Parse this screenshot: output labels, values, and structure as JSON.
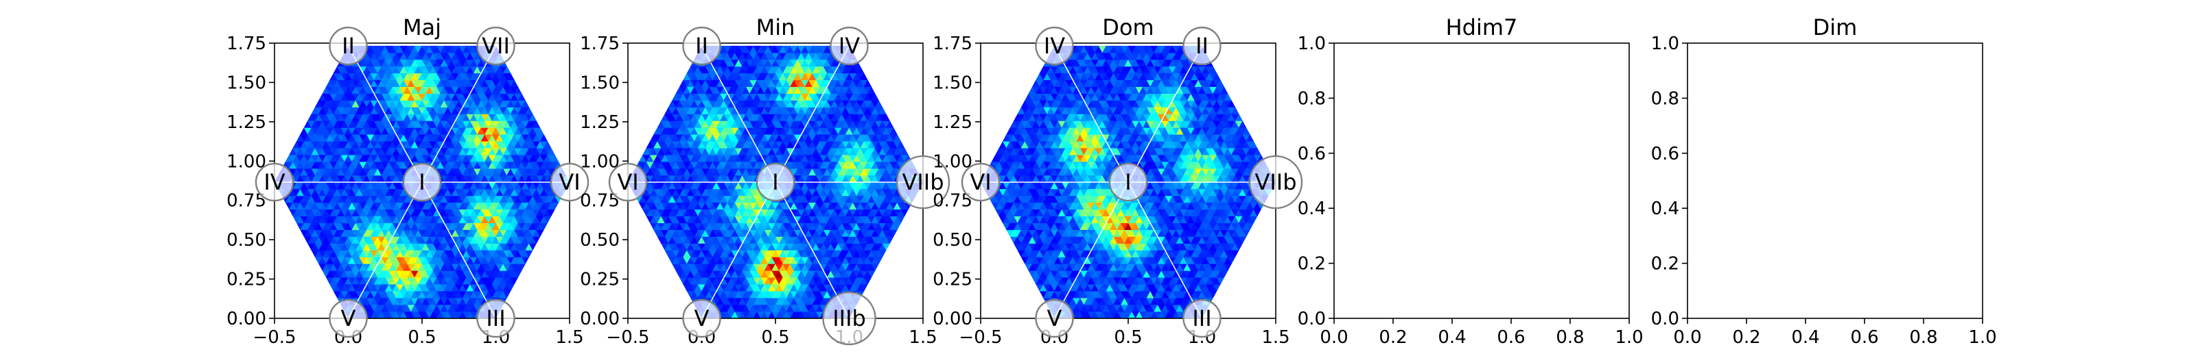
{
  "colors": {
    "axes_edge": "#000000",
    "grid_line": "#ffffff",
    "marker_fill": "#ffffff",
    "marker_edge": "#808080",
    "colormap": "jet"
  },
  "chart_data": [
    {
      "type": "heatmap",
      "title": "Maj",
      "xlim": [
        -0.5,
        1.5
      ],
      "ylim": [
        0,
        1.75
      ],
      "xticks": [
        "−0.5",
        "0.0",
        "0.5",
        "1.0",
        "1.5"
      ],
      "yticks": [
        "0.00",
        "0.25",
        "0.50",
        "0.75",
        "1.00",
        "1.25",
        "1.50",
        "1.75"
      ],
      "hexagon": {
        "center": [
          0.5,
          0.866
        ],
        "radius": 1.0
      },
      "vertex_labels": [
        {
          "label": "I",
          "x": 0.5,
          "y": 0.866
        },
        {
          "label": "II",
          "x": 0.0,
          "y": 1.732
        },
        {
          "label": "VII",
          "x": 1.0,
          "y": 1.732
        },
        {
          "label": "IV",
          "x": -0.5,
          "y": 0.866
        },
        {
          "label": "VI",
          "x": 1.5,
          "y": 0.866
        },
        {
          "label": "V",
          "x": 0.0,
          "y": 0.0
        },
        {
          "label": "III",
          "x": 1.0,
          "y": 0.0
        }
      ],
      "hotspots": [
        {
          "x": 0.45,
          "y": 1.45,
          "intensity": 0.55
        },
        {
          "x": 0.95,
          "y": 1.15,
          "intensity": 0.65
        },
        {
          "x": 0.95,
          "y": 0.6,
          "intensity": 0.55
        },
        {
          "x": 0.4,
          "y": 0.3,
          "intensity": 0.6
        },
        {
          "x": 0.2,
          "y": 0.45,
          "intensity": 0.5
        }
      ]
    },
    {
      "type": "heatmap",
      "title": "Min",
      "xlim": [
        -0.5,
        1.5
      ],
      "ylim": [
        0,
        1.75
      ],
      "xticks": [
        "−0.5",
        "0.0",
        "0.5",
        "1.0",
        "1.5"
      ],
      "yticks": [
        "0.00",
        "0.25",
        "0.50",
        "0.75",
        "1.00",
        "1.25",
        "1.50",
        "1.75"
      ],
      "hexagon": {
        "center": [
          0.5,
          0.866
        ],
        "radius": 1.0
      },
      "vertex_labels": [
        {
          "label": "I",
          "x": 0.5,
          "y": 0.866
        },
        {
          "label": "II",
          "x": 0.0,
          "y": 1.732
        },
        {
          "label": "IV",
          "x": 1.0,
          "y": 1.732
        },
        {
          "label": "VI",
          "x": -0.5,
          "y": 0.866
        },
        {
          "label": "VIIb",
          "x": 1.5,
          "y": 0.866
        },
        {
          "label": "V",
          "x": 0.0,
          "y": 0.0
        },
        {
          "label": "IIIb",
          "x": 1.0,
          "y": 0.0
        }
      ],
      "hotspots": [
        {
          "x": 0.7,
          "y": 1.5,
          "intensity": 0.6
        },
        {
          "x": 0.5,
          "y": 0.3,
          "intensity": 0.75
        },
        {
          "x": 1.05,
          "y": 0.95,
          "intensity": 0.45
        },
        {
          "x": 0.1,
          "y": 1.2,
          "intensity": 0.4
        },
        {
          "x": 0.35,
          "y": 0.7,
          "intensity": 0.45
        }
      ]
    },
    {
      "type": "heatmap",
      "title": "Dom",
      "xlim": [
        -0.5,
        1.5
      ],
      "ylim": [
        0,
        1.75
      ],
      "xticks": [
        "−0.5",
        "0.0",
        "0.5",
        "1.0",
        "1.5"
      ],
      "yticks": [
        "0.00",
        "0.25",
        "0.50",
        "0.75",
        "1.00",
        "1.25",
        "1.50",
        "1.75"
      ],
      "hexagon": {
        "center": [
          0.5,
          0.866
        ],
        "radius": 1.0
      },
      "vertex_labels": [
        {
          "label": "I",
          "x": 0.5,
          "y": 0.866
        },
        {
          "label": "IV",
          "x": 0.0,
          "y": 1.732
        },
        {
          "label": "II",
          "x": 1.0,
          "y": 1.732
        },
        {
          "label": "VI",
          "x": -0.5,
          "y": 0.866
        },
        {
          "label": "VIIb",
          "x": 1.5,
          "y": 0.866
        },
        {
          "label": "V",
          "x": 0.0,
          "y": 0.0
        },
        {
          "label": "III",
          "x": 1.0,
          "y": 0.0
        }
      ],
      "hotspots": [
        {
          "x": 0.2,
          "y": 1.1,
          "intensity": 0.6
        },
        {
          "x": 0.5,
          "y": 0.55,
          "intensity": 0.65
        },
        {
          "x": 0.75,
          "y": 1.3,
          "intensity": 0.45
        },
        {
          "x": 1.0,
          "y": 0.95,
          "intensity": 0.4
        },
        {
          "x": 0.3,
          "y": 0.7,
          "intensity": 0.5
        }
      ]
    },
    {
      "type": "heatmap",
      "title": "Hdim7",
      "empty": true,
      "xlim": [
        0,
        1
      ],
      "ylim": [
        0,
        1
      ],
      "xticks": [
        "0.0",
        "0.2",
        "0.4",
        "0.6",
        "0.8",
        "1.0"
      ],
      "yticks": [
        "0.0",
        "0.2",
        "0.4",
        "0.6",
        "0.8",
        "1.0"
      ]
    },
    {
      "type": "heatmap",
      "title": "Dim",
      "empty": true,
      "xlim": [
        0,
        1
      ],
      "ylim": [
        0,
        1
      ],
      "xticks": [
        "0.0",
        "0.2",
        "0.4",
        "0.6",
        "0.8",
        "1.0"
      ],
      "yticks": [
        "0.0",
        "0.2",
        "0.4",
        "0.6",
        "0.8",
        "1.0"
      ]
    }
  ]
}
